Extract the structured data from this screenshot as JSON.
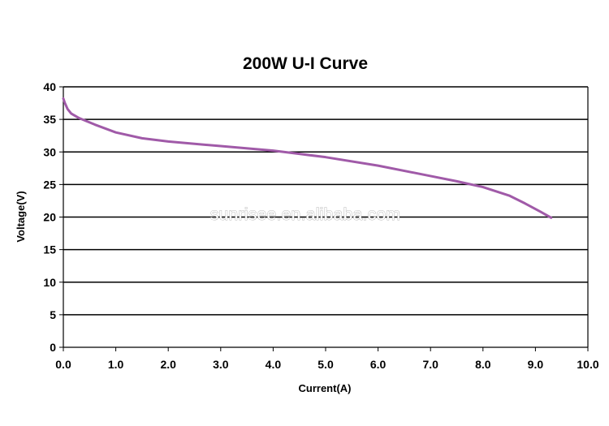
{
  "chart_data": {
    "type": "line",
    "title": "200W U-I Curve",
    "xlabel": "Current(A)",
    "ylabel": "Voltage(V)",
    "xlim": [
      0,
      10
    ],
    "ylim": [
      0,
      40
    ],
    "x_ticks": [
      "0.0",
      "1.0",
      "2.0",
      "3.0",
      "4.0",
      "5.0",
      "6.0",
      "7.0",
      "8.0",
      "9.0",
      "10.0"
    ],
    "y_ticks": [
      "0",
      "5",
      "10",
      "15",
      "20",
      "25",
      "30",
      "35",
      "40"
    ],
    "grid": "horizontal",
    "legend": "none",
    "series": [
      {
        "color": "#a05aa8",
        "x": [
          0.0,
          0.03,
          0.08,
          0.15,
          0.3,
          0.6,
          1.0,
          1.5,
          2.0,
          3.0,
          4.0,
          4.5,
          5.0,
          6.0,
          7.0,
          7.5,
          8.0,
          8.5,
          8.8,
          9.1,
          9.3
        ],
        "y": [
          38.2,
          37.5,
          36.6,
          35.9,
          35.2,
          34.2,
          33.0,
          32.1,
          31.6,
          30.9,
          30.2,
          29.7,
          29.2,
          27.9,
          26.3,
          25.5,
          24.6,
          23.3,
          22.1,
          20.8,
          19.9
        ]
      }
    ]
  },
  "watermark": "sunrisee.en.alibaba.com"
}
